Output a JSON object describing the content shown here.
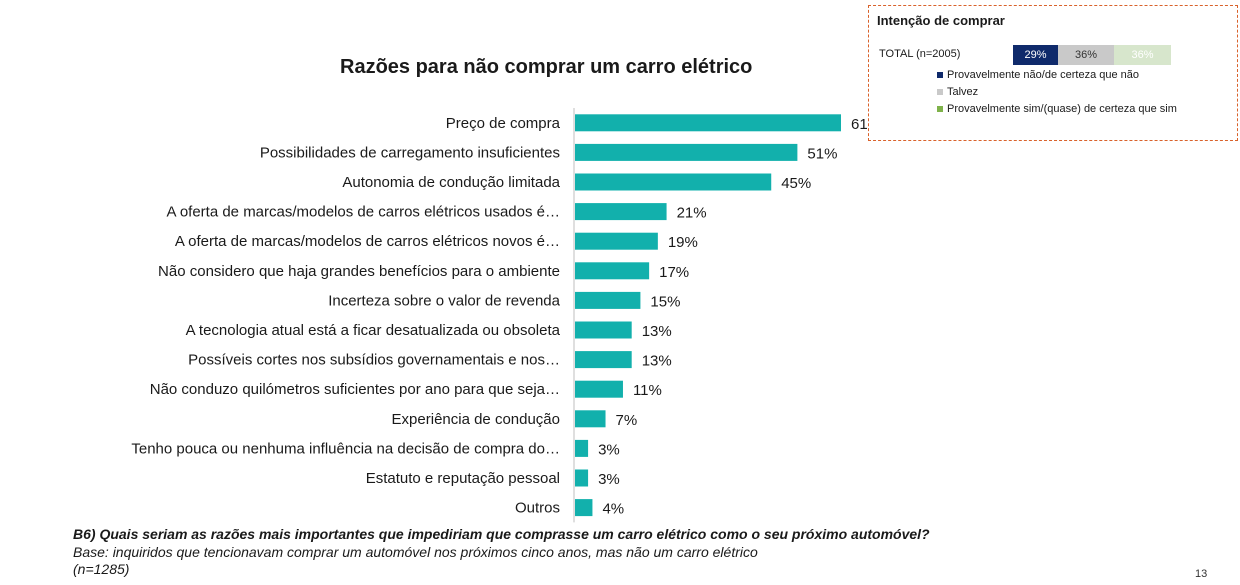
{
  "chart_data": {
    "type": "bar",
    "orientation": "horizontal",
    "title": "Razões para não comprar um carro elétrico",
    "categories": [
      "Preço de compra",
      "Possibilidades de carregamento insuficientes",
      "Autonomia de condução limitada",
      "A oferta de marcas/modelos de carros elétricos usados é…",
      "A oferta de marcas/modelos de carros elétricos novos é…",
      "Não considero que haja grandes benefícios para o ambiente",
      "Incerteza sobre o valor de revenda",
      "A tecnologia atual está a ficar desatualizada ou obsoleta",
      "Possíveis cortes nos subsídios governamentais e nos…",
      "Não conduzo quilómetros suficientes por ano para que seja…",
      "Experiência de condução",
      "Tenho pouca ou nenhuma influência na decisão de compra do…",
      "Estatuto e reputação pessoal",
      "Outros"
    ],
    "values": [
      61,
      51,
      45,
      21,
      19,
      17,
      15,
      13,
      13,
      11,
      7,
      3,
      3,
      4
    ],
    "value_suffix": "%",
    "bar_color": "#12b0ac",
    "xlim": [
      0,
      70
    ],
    "grid": false
  },
  "legend": {
    "title": "Intenção de comprar",
    "total_label": "TOTAL (n=2005)",
    "segments": [
      {
        "label": "Provavelmente não/de certeza que não",
        "value": "29%",
        "color": "#0f2a6b"
      },
      {
        "label": "Talvez",
        "value": "36%",
        "color": "#c9c9c9"
      },
      {
        "label": "Provavelmente sim/(quase) de certeza que sim",
        "value": "36%",
        "color": "#7fb24a"
      }
    ]
  },
  "footer": {
    "question": "B6) Quais seriam as razões mais importantes que impediriam que comprasse um carro elétrico como o seu próximo automóvel?",
    "base": "Base: inquiridos que tencionavam comprar um automóvel nos próximos cinco anos, mas não um carro elétrico (n=1285)",
    "page_number": "13"
  }
}
